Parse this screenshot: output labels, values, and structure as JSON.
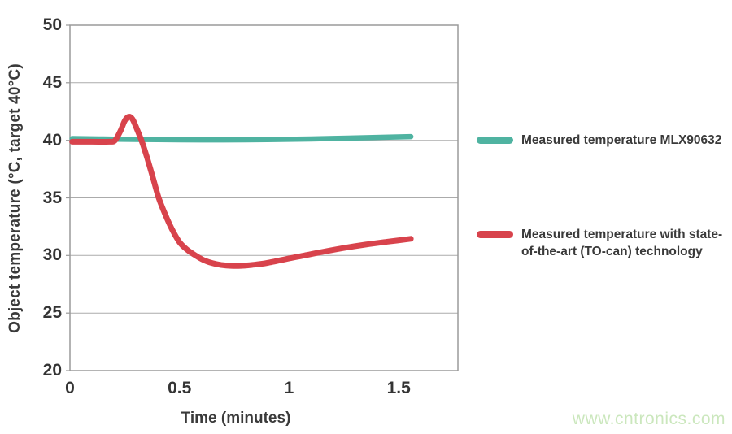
{
  "chart_data": {
    "type": "line",
    "title": "",
    "xlabel": "Time (minutes)",
    "ylabel": "Object temperature (°C, target 40°C)",
    "xlim": [
      0,
      1.77
    ],
    "ylim": [
      20,
      50
    ],
    "x_ticks": [
      0,
      0.5,
      1,
      1.5
    ],
    "x_tick_labels": [
      "0",
      "0.5",
      "1",
      "1.5"
    ],
    "y_ticks": [
      50,
      45,
      40,
      35,
      30,
      25,
      20
    ],
    "grid": "horizontal-only",
    "legend_position": "right-outside",
    "colors": {
      "grid": "#ababab",
      "axis": "#9a9a9a",
      "text": "#3a3a3a"
    },
    "series": [
      {
        "name": "Measured temperature MLX90632",
        "color": "#4fb3a1",
        "stroke_width": 6.5,
        "x": [
          0.01,
          0.2,
          0.4,
          0.6,
          0.8,
          1.0,
          1.2,
          1.4,
          1.555
        ],
        "y": [
          40.15,
          40.1,
          40.06,
          40.04,
          40.05,
          40.09,
          40.16,
          40.25,
          40.32
        ]
      },
      {
        "name": "Measured temperature with state-of-the-art (TO-can) technology",
        "color": "#d8434c",
        "stroke_width": 7,
        "x": [
          0.01,
          0.1,
          0.18,
          0.205,
          0.23,
          0.25,
          0.268,
          0.285,
          0.305,
          0.33,
          0.355,
          0.38,
          0.405,
          0.435,
          0.465,
          0.5,
          0.535,
          0.573,
          0.61,
          0.65,
          0.69,
          0.735,
          0.78,
          0.83,
          0.9,
          1.0,
          1.07,
          1.15,
          1.25,
          1.35,
          1.45,
          1.555
        ],
        "y": [
          39.88,
          39.88,
          39.88,
          39.98,
          40.8,
          41.7,
          42.05,
          41.85,
          41.0,
          39.8,
          38.3,
          36.65,
          35.0,
          33.55,
          32.3,
          31.15,
          30.5,
          30.0,
          29.6,
          29.33,
          29.18,
          29.1,
          29.1,
          29.18,
          29.35,
          29.75,
          30.0,
          30.3,
          30.65,
          30.95,
          31.2,
          31.45
        ]
      }
    ]
  },
  "watermark": {
    "text": "www.cntronics.com",
    "color": "#cbe7bd"
  }
}
